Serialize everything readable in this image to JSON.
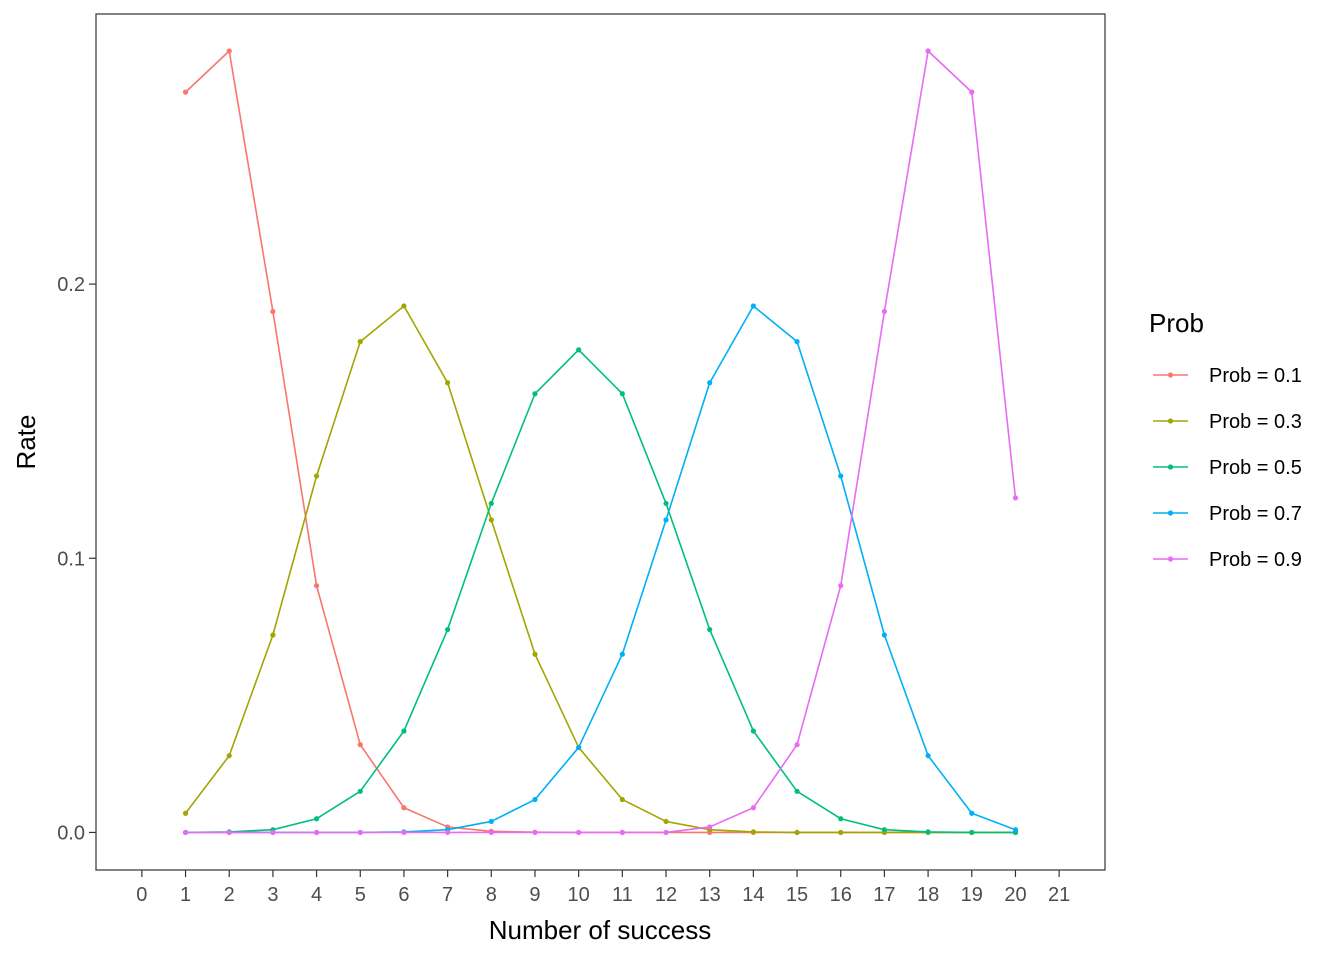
{
  "chart_data": {
    "type": "line",
    "xlabel": "Number of success",
    "ylabel": "Rate",
    "x_ticks": [
      0,
      1,
      2,
      3,
      4,
      5,
      6,
      7,
      8,
      9,
      10,
      11,
      12,
      13,
      14,
      15,
      16,
      17,
      18,
      19,
      20,
      21
    ],
    "y_ticks": [
      "0.0",
      "0.1",
      "0.2"
    ],
    "y_tick_values": [
      0,
      0.1,
      0.2
    ],
    "xlim": [
      -1.05,
      22.05
    ],
    "ylim": [
      -0.0137,
      0.2985
    ],
    "grid": false,
    "legend": {
      "title": "Prob",
      "position": "right"
    },
    "x": [
      1,
      2,
      3,
      4,
      5,
      6,
      7,
      8,
      9,
      10,
      11,
      12,
      13,
      14,
      15,
      16,
      17,
      18,
      19,
      20
    ],
    "series": [
      {
        "name": "Prob = 0.1",
        "color": "#F8766D",
        "values": [
          0.27,
          0.285,
          0.19,
          0.09,
          0.032,
          0.009,
          0.002,
          0.0004,
          0.0001,
          0.0,
          0.0,
          0.0,
          0.0,
          0.0,
          0.0,
          0.0,
          0.0,
          0.0,
          0.0,
          0.0
        ]
      },
      {
        "name": "Prob = 0.3",
        "color": "#A3A500",
        "values": [
          0.007,
          0.028,
          0.072,
          0.13,
          0.179,
          0.192,
          0.164,
          0.114,
          0.065,
          0.031,
          0.012,
          0.004,
          0.001,
          0.0002,
          0.0,
          0.0,
          0.0,
          0.0,
          0.0,
          0.0
        ]
      },
      {
        "name": "Prob = 0.5",
        "color": "#00BF7D",
        "values": [
          0.0,
          0.0002,
          0.001,
          0.005,
          0.015,
          0.037,
          0.074,
          0.12,
          0.16,
          0.176,
          0.16,
          0.12,
          0.074,
          0.037,
          0.015,
          0.005,
          0.001,
          0.0002,
          0.0,
          0.0
        ]
      },
      {
        "name": "Prob = 0.7",
        "color": "#00B0F6",
        "values": [
          0.0,
          0.0,
          0.0,
          0.0,
          0.0,
          0.0002,
          0.001,
          0.004,
          0.012,
          0.031,
          0.065,
          0.114,
          0.164,
          0.192,
          0.179,
          0.13,
          0.072,
          0.028,
          0.007,
          0.001
        ]
      },
      {
        "name": "Prob = 0.9",
        "color": "#E76BF3",
        "values": [
          0.0,
          0.0,
          0.0,
          0.0,
          0.0,
          0.0,
          0.0,
          0.0,
          0.0,
          0.0,
          0.0,
          0.0,
          0.002,
          0.009,
          0.032,
          0.09,
          0.19,
          0.285,
          0.27,
          0.122
        ]
      }
    ]
  }
}
